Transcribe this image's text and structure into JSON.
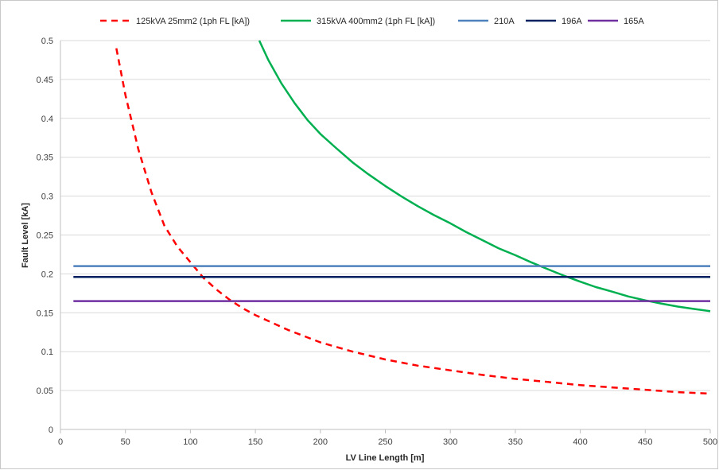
{
  "chart_data": {
    "type": "line",
    "title": "",
    "xlabel": "LV Line Length [m]",
    "ylabel": "Fault Level [kA]",
    "xlim": [
      0,
      500
    ],
    "ylim": [
      0,
      0.5
    ],
    "xticks": [
      "0",
      "50",
      "100",
      "150",
      "200",
      "250",
      "300",
      "350",
      "400",
      "450",
      "500"
    ],
    "yticks": [
      "0",
      "0.05",
      "0.1",
      "0.15",
      "0.2",
      "0.25",
      "0.3",
      "0.35",
      "0.4",
      "0.45",
      "0.5"
    ],
    "grid": "horizontal",
    "legend_position": "top",
    "series": [
      {
        "name": "125kVA 25mm2 (1ph FL [kA])",
        "color": "#ff0000",
        "style": "dashed",
        "points": [
          [
            43,
            0.49
          ],
          [
            50,
            0.43
          ],
          [
            60,
            0.36
          ],
          [
            70,
            0.305
          ],
          [
            80,
            0.262
          ],
          [
            90,
            0.235
          ],
          [
            100,
            0.215
          ],
          [
            110,
            0.195
          ],
          [
            120,
            0.18
          ],
          [
            130,
            0.167
          ],
          [
            140,
            0.156
          ],
          [
            150,
            0.147
          ],
          [
            175,
            0.128
          ],
          [
            200,
            0.112
          ],
          [
            225,
            0.1
          ],
          [
            250,
            0.09
          ],
          [
            275,
            0.082
          ],
          [
            300,
            0.076
          ],
          [
            325,
            0.07
          ],
          [
            350,
            0.065
          ],
          [
            375,
            0.061
          ],
          [
            400,
            0.057
          ],
          [
            425,
            0.054
          ],
          [
            450,
            0.051
          ],
          [
            475,
            0.048
          ],
          [
            500,
            0.046
          ]
        ]
      },
      {
        "name": "315kVA 400mm2 (1ph FL [kA])",
        "color": "#00b050",
        "style": "solid",
        "points": [
          [
            153,
            0.5
          ],
          [
            160,
            0.475
          ],
          [
            170,
            0.445
          ],
          [
            180,
            0.42
          ],
          [
            190,
            0.398
          ],
          [
            200,
            0.38
          ],
          [
            212,
            0.362
          ],
          [
            225,
            0.343
          ],
          [
            237,
            0.328
          ],
          [
            250,
            0.313
          ],
          [
            262,
            0.3
          ],
          [
            275,
            0.287
          ],
          [
            287,
            0.276
          ],
          [
            300,
            0.265
          ],
          [
            312,
            0.254
          ],
          [
            325,
            0.243
          ],
          [
            337,
            0.233
          ],
          [
            350,
            0.224
          ],
          [
            362,
            0.215
          ],
          [
            375,
            0.206
          ],
          [
            387,
            0.198
          ],
          [
            400,
            0.19
          ],
          [
            412,
            0.183
          ],
          [
            425,
            0.177
          ],
          [
            437,
            0.171
          ],
          [
            450,
            0.166
          ],
          [
            462,
            0.162
          ],
          [
            475,
            0.158
          ],
          [
            487,
            0.155
          ],
          [
            500,
            0.152
          ]
        ]
      },
      {
        "name": "210A",
        "color": "#4f81bd",
        "style": "solid",
        "points": [
          [
            10,
            0.21
          ],
          [
            500,
            0.21
          ]
        ]
      },
      {
        "name": "196A",
        "color": "#002060",
        "style": "solid",
        "points": [
          [
            10,
            0.196
          ],
          [
            500,
            0.196
          ]
        ]
      },
      {
        "name": "165A",
        "color": "#7030a0",
        "style": "solid",
        "points": [
          [
            10,
            0.165
          ],
          [
            500,
            0.165
          ]
        ]
      }
    ]
  }
}
